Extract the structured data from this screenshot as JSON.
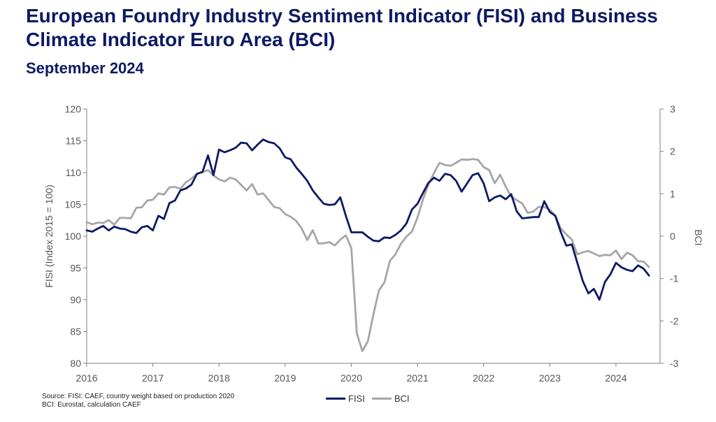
{
  "title": "European Foundry Industry Sentiment Indicator (FISI) and Business Climate Indicator Euro Area (BCI)",
  "subtitle": "September 2024",
  "footnotes": [
    "Source: FISI: CAEF, country weight based on production 2020",
    "BCI: Eurostat, calculation CAEF"
  ],
  "chart_data": {
    "type": "line",
    "x_ticks": [
      "2016",
      "2017",
      "2018",
      "2019",
      "2020",
      "2021",
      "2022",
      "2023",
      "2024"
    ],
    "xlim": [
      "2016-01",
      "2024-09"
    ],
    "y_left": {
      "label": "FISI (Index 2015 = 100)",
      "ylim": [
        80,
        120
      ],
      "ticks": [
        80,
        85,
        90,
        95,
        100,
        105,
        110,
        115,
        120
      ]
    },
    "y_right": {
      "label": "BCI",
      "ylim": [
        -3,
        3
      ],
      "ticks": [
        -3,
        -2,
        -1,
        0,
        1,
        2,
        3
      ]
    },
    "grid": false,
    "legend": "bottom-center",
    "series": [
      {
        "name": "FISI",
        "axis": "left",
        "color": "#0d1a63",
        "start": "2016-01",
        "values": [
          100.9,
          100.7,
          101.2,
          101.6,
          100.9,
          101.5,
          101.2,
          101.1,
          100.7,
          100.5,
          101.4,
          101.6,
          100.9,
          103.2,
          102.7,
          105.2,
          105.6,
          107.2,
          107.5,
          108.1,
          109.8,
          110.1,
          112.7,
          109.6,
          113.6,
          113.2,
          113.5,
          113.9,
          114.7,
          114.6,
          113.5,
          114.4,
          115.2,
          114.8,
          114.6,
          113.8,
          112.4,
          112.1,
          110.8,
          109.8,
          108.7,
          107.2,
          106.1,
          105.1,
          104.9,
          105.0,
          106.1,
          103.2,
          100.6,
          100.6,
          100.6,
          99.9,
          99.3,
          99.2,
          99.8,
          99.7,
          100.2,
          100.9,
          102.0,
          104.2,
          105.1,
          106.8,
          108.4,
          109.2,
          108.7,
          109.8,
          109.6,
          108.7,
          107.0,
          108.3,
          109.6,
          109.9,
          108.3,
          105.5,
          106.1,
          106.4,
          105.8,
          106.6,
          103.9,
          102.8,
          102.9,
          103.0,
          103.0,
          105.5,
          103.8,
          103.2,
          100.6,
          98.5,
          98.7,
          95.8,
          92.9,
          91.0,
          91.7,
          90.0,
          92.8,
          94.0,
          95.8,
          95.1,
          94.7,
          94.5,
          95.4,
          94.9,
          93.8
        ]
      },
      {
        "name": "BCI",
        "axis": "right",
        "color": "#a6a6a6",
        "start": "2016-01",
        "values": [
          0.33,
          0.28,
          0.32,
          0.31,
          0.38,
          0.27,
          0.43,
          0.43,
          0.42,
          0.67,
          0.68,
          0.84,
          0.86,
          1.01,
          0.98,
          1.15,
          1.16,
          1.12,
          1.27,
          1.36,
          1.47,
          1.51,
          1.56,
          1.43,
          1.34,
          1.29,
          1.38,
          1.34,
          1.21,
          1.08,
          1.23,
          0.98,
          1.01,
          0.85,
          0.69,
          0.66,
          0.52,
          0.46,
          0.36,
          0.18,
          -0.09,
          0.14,
          -0.17,
          -0.17,
          -0.14,
          -0.22,
          -0.08,
          0.02,
          -0.28,
          -2.29,
          -2.71,
          -2.48,
          -1.85,
          -1.28,
          -1.09,
          -0.58,
          -0.43,
          -0.18,
          -0.01,
          0.11,
          0.44,
          0.87,
          1.22,
          1.49,
          1.73,
          1.68,
          1.66,
          1.73,
          1.81,
          1.8,
          1.82,
          1.8,
          1.63,
          1.56,
          1.25,
          1.45,
          1.17,
          0.93,
          0.85,
          0.77,
          0.55,
          0.58,
          0.69,
          0.69,
          0.62,
          0.48,
          0.18,
          0.04,
          -0.08,
          -0.43,
          -0.38,
          -0.35,
          -0.41,
          -0.47,
          -0.44,
          -0.45,
          -0.34,
          -0.54,
          -0.39,
          -0.45,
          -0.59,
          -0.6,
          -0.73
        ]
      }
    ]
  }
}
